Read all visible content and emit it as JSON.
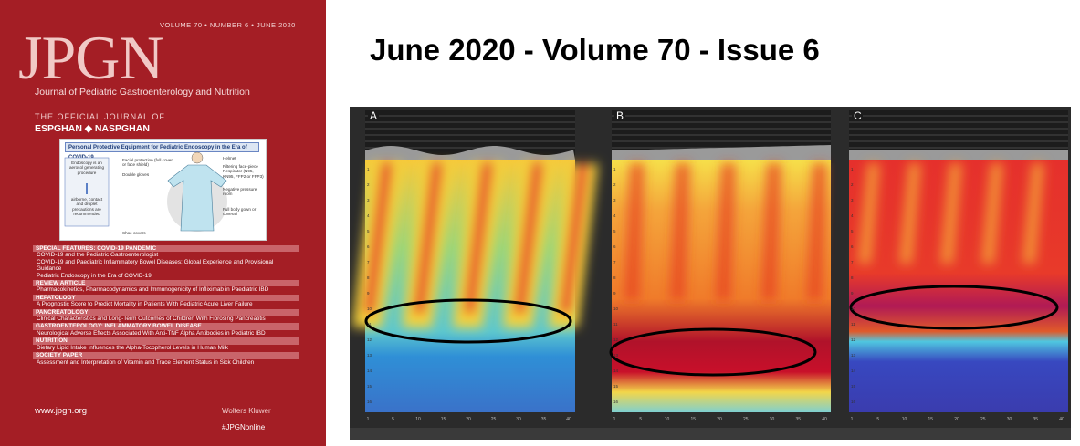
{
  "cover": {
    "issue_line": "VOLUME 70 • NUMBER 6 • JUNE 2020",
    "logo": "JPGN",
    "journal_name": "Journal of Pediatric Gastroenterology and Nutrition",
    "official_line": "THE OFFICIAL JOURNAL OF",
    "societies": "ESPGHAN ◆ NASPGHAN",
    "inset": {
      "title": "Personal Protective Equipment for Pediatric Endoscopy in the Era of COVID-19",
      "labels": [
        "Endoscopy is an aerosol generating procedure",
        "airborne, contact and droplet precautions are recommended",
        "Facial protection (full cover or face shield)",
        "Double gloves",
        "Shoe covers",
        "Helmet",
        "Filtering face-piece Respirator (N95, KN95, FFP2 or FFP3)",
        "Negative pressure room",
        "Full body gown or coverall"
      ]
    },
    "sections": [
      {
        "heading": "SPECIAL FEATURES: COVID-19 PANDEMIC",
        "items": [
          "COVID-19 and the Pediatric Gastroenterologist",
          "COVID-19 and Paediatric Inflammatory Bowel Diseases: Global Experience and Provisional Guidance",
          "Pediatric Endoscopy in the Era of COVID-19"
        ]
      },
      {
        "heading": "REVIEW ARTICLE",
        "items": [
          "Pharmacokinetics, Pharmacodynamics and Immunogenicity of Infliximab in Paediatric IBD"
        ]
      },
      {
        "heading": "HEPATOLOGY",
        "items": [
          "A Prognostic Score to Predict Mortality in Patients With Pediatric Acute Liver Failure"
        ]
      },
      {
        "heading": "PANCREATOLOGY",
        "items": [
          "Clinical Characteristics and Long-Term Outcomes of Children With Fibrosing Pancreatitis"
        ]
      },
      {
        "heading": "GASTROENTEROLOGY: INFLAMMATORY BOWEL DISEASE",
        "items": [
          "Neurological Adverse Effects Associated With Anti-TNF Alpha Antibodies in Pediatric IBD"
        ]
      },
      {
        "heading": "NUTRITION",
        "items": [
          "Dietary Lipid Intake Influences the Alpha-Tocopherol Levels in Human Milk"
        ]
      },
      {
        "heading": "SOCIETY PAPER",
        "items": [
          "Assessment and Interpretation of Vitamin and Trace Element Status in Sick Children"
        ]
      }
    ],
    "website": "www.jpgn.org",
    "publisher": "Wolters Kluwer",
    "hashtag": "#JPGNonline"
  },
  "heading": "June 2020 - Volume 70 - Issue 6",
  "figure": {
    "panels": [
      "A",
      "B",
      "C"
    ],
    "x_ticks": [
      "1",
      "5",
      "10",
      "15",
      "20",
      "25",
      "30",
      "35",
      "40"
    ],
    "y_ticks": [
      "1",
      "2",
      "3",
      "4",
      "5",
      "6",
      "7",
      "8",
      "9",
      "10",
      "11",
      "12",
      "13",
      "14",
      "15",
      "16"
    ]
  }
}
